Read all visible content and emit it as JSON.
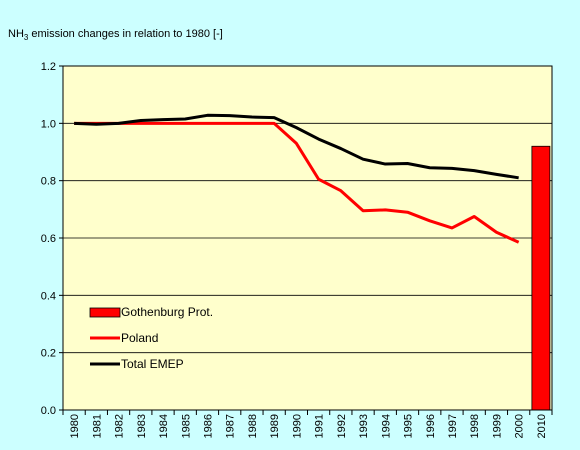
{
  "chart_data": {
    "type": "combo",
    "title": [
      "NH",
      "3",
      " emission changes in relation to 1980 [-]"
    ],
    "categories": [
      "1980",
      "1981",
      "1982",
      "1983",
      "1984",
      "1985",
      "1986",
      "1987",
      "1988",
      "1989",
      "1990",
      "1991",
      "1992",
      "1993",
      "1994",
      "1995",
      "1996",
      "1997",
      "1998",
      "1999",
      "2000",
      "2010"
    ],
    "series": [
      {
        "name": "Gothenburg Prot.",
        "type": "bar",
        "color": "#ff0000",
        "values": [
          null,
          null,
          null,
          null,
          null,
          null,
          null,
          null,
          null,
          null,
          null,
          null,
          null,
          null,
          null,
          null,
          null,
          null,
          null,
          null,
          null,
          0.92
        ]
      },
      {
        "name": "Poland",
        "type": "line",
        "color": "#ff0000",
        "values": [
          1.0,
          1.0,
          1.0,
          1.0,
          1.0,
          1.0,
          1.0,
          1.0,
          1.0,
          1.0,
          0.93,
          0.805,
          0.765,
          0.695,
          0.698,
          0.69,
          0.66,
          0.635,
          0.675,
          0.62,
          0.585,
          null
        ]
      },
      {
        "name": "Total EMEP",
        "type": "line",
        "color": "#000000",
        "values": [
          1.0,
          0.997,
          1.0,
          1.01,
          1.013,
          1.015,
          1.028,
          1.027,
          1.022,
          1.02,
          0.985,
          0.945,
          0.912,
          0.875,
          0.858,
          0.86,
          0.845,
          0.843,
          0.835,
          0.822,
          0.81,
          null
        ]
      }
    ],
    "ylim": [
      0,
      1.2
    ],
    "yticks": [
      {
        "value": 0,
        "label": "0.0"
      },
      0.2,
      0.4,
      0.6,
      0.8,
      {
        "value": 1,
        "label": "1.0"
      },
      1.2
    ],
    "grid": true
  }
}
